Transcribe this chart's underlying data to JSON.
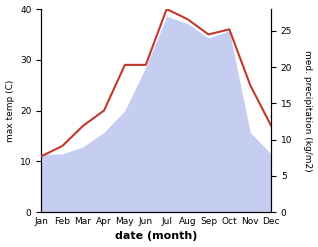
{
  "months": [
    "Jan",
    "Feb",
    "Mar",
    "Apr",
    "May",
    "Jun",
    "Jul",
    "Aug",
    "Sep",
    "Oct",
    "Nov",
    "Dec"
  ],
  "max_temp": [
    11,
    13,
    17,
    20,
    29,
    29,
    40,
    38,
    35,
    36,
    25,
    17
  ],
  "med_precip": [
    8,
    8,
    9,
    11,
    14,
    20,
    27,
    26,
    24,
    25,
    11,
    8
  ],
  "temp_color": "#c0392b",
  "precip_fill_color": "#c5cdf0",
  "temp_ylim": [
    0,
    40
  ],
  "precip_ylim": [
    0,
    28
  ],
  "temp_yticks": [
    0,
    10,
    20,
    30,
    40
  ],
  "precip_yticks": [
    0,
    5,
    10,
    15,
    20,
    25
  ],
  "xlabel": "date (month)",
  "ylabel_left": "max temp (C)",
  "ylabel_right": "med. precipitation (kg/m2)",
  "figsize": [
    3.18,
    2.47
  ],
  "dpi": 100
}
